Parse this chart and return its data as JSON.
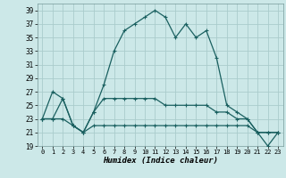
{
  "title": "",
  "xlabel": "Humidex (Indice chaleur)",
  "bg_color": "#cce8e8",
  "grid_color": "#aacccc",
  "line_color": "#1a6060",
  "xlim": [
    -0.5,
    23.5
  ],
  "ylim": [
    19,
    40
  ],
  "yticks": [
    19,
    21,
    23,
    25,
    27,
    29,
    31,
    33,
    35,
    37,
    39
  ],
  "xticks": [
    0,
    1,
    2,
    3,
    4,
    5,
    6,
    7,
    8,
    9,
    10,
    11,
    12,
    13,
    14,
    15,
    16,
    17,
    18,
    19,
    20,
    21,
    22,
    23
  ],
  "series1": [
    23,
    27,
    26,
    22,
    21,
    24,
    28,
    33,
    36,
    37,
    38,
    39,
    38,
    35,
    37,
    35,
    36,
    32,
    25,
    24,
    23,
    21,
    21,
    21
  ],
  "series2": [
    23,
    23,
    26,
    22,
    21,
    24,
    26,
    26,
    26,
    26,
    26,
    26,
    25,
    25,
    25,
    25,
    25,
    24,
    24,
    23,
    23,
    21,
    21,
    21
  ],
  "series3": [
    23,
    23,
    23,
    22,
    21,
    22,
    22,
    22,
    22,
    22,
    22,
    22,
    22,
    22,
    22,
    22,
    22,
    22,
    22,
    22,
    22,
    21,
    19,
    21
  ]
}
